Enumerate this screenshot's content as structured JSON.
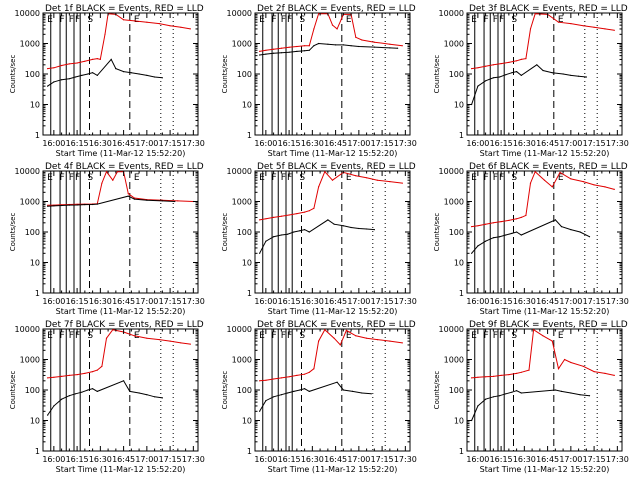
{
  "chart_data": {
    "type": "line",
    "x_tick_labels": [
      "16:00",
      "16:15",
      "16:30",
      "16:45",
      "17:00",
      "17:15",
      "17:30"
    ],
    "x_ticks_min": [
      0,
      15,
      30,
      45,
      60,
      75,
      90
    ],
    "xlim_min": [
      -7,
      93
    ],
    "y_tick_labels": [
      "1",
      "10",
      "100",
      "1000",
      "10000"
    ],
    "y_tick_values": [
      1,
      10,
      100,
      1000,
      10000
    ],
    "ylim": [
      1,
      10000
    ],
    "ylabel": "Counts/sec",
    "xlabel": "Start Time (11-Mar-12 15:52:20)",
    "legend": {
      "black": "Events",
      "red": "LLD"
    },
    "colors": {
      "events": "#000000",
      "lld": "#e00000"
    },
    "panels": [
      {
        "title": "Det 1f BLACK = Events, RED = LLD",
        "lld": [
          [
            -4,
            150
          ],
          [
            0,
            160
          ],
          [
            5,
            190
          ],
          [
            10,
            215
          ],
          [
            15,
            230
          ],
          [
            20,
            260
          ],
          [
            25,
            300
          ],
          [
            28,
            320
          ],
          [
            30,
            300
          ],
          [
            33,
            2000
          ],
          [
            35,
            9500
          ],
          [
            40,
            9000
          ],
          [
            45,
            6000
          ],
          [
            52,
            5500
          ],
          [
            60,
            5000
          ],
          [
            68,
            4500
          ],
          [
            75,
            3800
          ],
          [
            82,
            3400
          ],
          [
            88,
            3000
          ]
        ],
        "events": [
          [
            -4,
            40
          ],
          [
            0,
            55
          ],
          [
            5,
            65
          ],
          [
            10,
            70
          ],
          [
            14,
            80
          ],
          [
            18,
            90
          ],
          [
            22,
            100
          ],
          [
            25,
            110
          ],
          [
            28,
            90
          ],
          [
            37,
            300
          ],
          [
            40,
            150
          ],
          [
            45,
            120
          ],
          [
            50,
            110
          ],
          [
            55,
            100
          ],
          [
            60,
            90
          ],
          [
            65,
            80
          ],
          [
            70,
            75
          ]
        ]
      },
      {
        "title": "Det 2f BLACK = Events, RED = LLD",
        "lld": [
          [
            -4,
            550
          ],
          [
            0,
            600
          ],
          [
            5,
            650
          ],
          [
            10,
            700
          ],
          [
            15,
            750
          ],
          [
            20,
            800
          ],
          [
            25,
            850
          ],
          [
            28,
            850
          ],
          [
            31,
            3000
          ],
          [
            34,
            9500
          ],
          [
            40,
            9500
          ],
          [
            43,
            4000
          ],
          [
            46,
            3000
          ],
          [
            50,
            9000
          ],
          [
            55,
            9000
          ],
          [
            58,
            1600
          ],
          [
            62,
            1300
          ],
          [
            70,
            1100
          ],
          [
            80,
            950
          ],
          [
            88,
            850
          ]
        ],
        "events": [
          [
            -4,
            420
          ],
          [
            0,
            450
          ],
          [
            5,
            480
          ],
          [
            10,
            500
          ],
          [
            15,
            520
          ],
          [
            20,
            550
          ],
          [
            25,
            580
          ],
          [
            28,
            600
          ],
          [
            31,
            850
          ],
          [
            34,
            1000
          ],
          [
            40,
            950
          ],
          [
            45,
            900
          ],
          [
            50,
            900
          ],
          [
            55,
            850
          ],
          [
            60,
            800
          ],
          [
            70,
            760
          ],
          [
            80,
            720
          ],
          [
            85,
            700
          ]
        ]
      },
      {
        "title": "Det 3f BLACK = Events, RED = LLD",
        "lld": [
          [
            -4,
            150
          ],
          [
            0,
            160
          ],
          [
            5,
            180
          ],
          [
            10,
            200
          ],
          [
            15,
            220
          ],
          [
            20,
            240
          ],
          [
            25,
            270
          ],
          [
            28,
            300
          ],
          [
            31,
            320
          ],
          [
            34,
            3000
          ],
          [
            37,
            9500
          ],
          [
            45,
            9000
          ],
          [
            52,
            5000
          ],
          [
            60,
            4500
          ],
          [
            68,
            3800
          ],
          [
            75,
            3400
          ],
          [
            82,
            3000
          ],
          [
            88,
            2700
          ]
        ],
        "events": [
          [
            -4,
            10
          ],
          [
            0,
            40
          ],
          [
            5,
            60
          ],
          [
            10,
            75
          ],
          [
            14,
            80
          ],
          [
            18,
            95
          ],
          [
            22,
            110
          ],
          [
            25,
            120
          ],
          [
            28,
            90
          ],
          [
            38,
            200
          ],
          [
            42,
            130
          ],
          [
            48,
            110
          ],
          [
            55,
            100
          ],
          [
            60,
            90
          ],
          [
            65,
            85
          ],
          [
            70,
            80
          ]
        ]
      },
      {
        "title": "Det 4f BLACK = Events, RED = LLD",
        "lld": [
          [
            -4,
            750
          ],
          [
            0,
            760
          ],
          [
            5,
            780
          ],
          [
            10,
            800
          ],
          [
            15,
            810
          ],
          [
            20,
            820
          ],
          [
            25,
            830
          ],
          [
            28,
            850
          ],
          [
            31,
            4000
          ],
          [
            34,
            9500
          ],
          [
            38,
            5000
          ],
          [
            41,
            9500
          ],
          [
            45,
            9500
          ],
          [
            48,
            1800
          ],
          [
            52,
            1300
          ],
          [
            60,
            1150
          ],
          [
            70,
            1100
          ],
          [
            80,
            1050
          ],
          [
            90,
            1000
          ]
        ],
        "events": [
          [
            -4,
            700
          ],
          [
            0,
            720
          ],
          [
            5,
            740
          ],
          [
            10,
            760
          ],
          [
            15,
            770
          ],
          [
            20,
            790
          ],
          [
            25,
            800
          ],
          [
            28,
            820
          ],
          [
            48,
            1500
          ],
          [
            52,
            1200
          ],
          [
            60,
            1100
          ],
          [
            70,
            1050
          ],
          [
            78,
            1000
          ]
        ]
      },
      {
        "title": "Det 5f BLACK = Events, RED = LLD",
        "lld": [
          [
            -4,
            250
          ],
          [
            0,
            270
          ],
          [
            5,
            300
          ],
          [
            10,
            330
          ],
          [
            15,
            360
          ],
          [
            20,
            400
          ],
          [
            25,
            450
          ],
          [
            28,
            500
          ],
          [
            31,
            600
          ],
          [
            34,
            3000
          ],
          [
            38,
            9500
          ],
          [
            43,
            5000
          ],
          [
            50,
            9000
          ],
          [
            58,
            7000
          ],
          [
            65,
            6000
          ],
          [
            72,
            5000
          ],
          [
            80,
            4500
          ],
          [
            88,
            4000
          ]
        ],
        "events": [
          [
            -4,
            20
          ],
          [
            0,
            50
          ],
          [
            5,
            70
          ],
          [
            10,
            80
          ],
          [
            14,
            85
          ],
          [
            18,
            100
          ],
          [
            22,
            110
          ],
          [
            25,
            120
          ],
          [
            28,
            100
          ],
          [
            40,
            250
          ],
          [
            44,
            180
          ],
          [
            50,
            160
          ],
          [
            55,
            140
          ],
          [
            60,
            130
          ],
          [
            65,
            125
          ],
          [
            70,
            120
          ]
        ]
      },
      {
        "title": "Det 6f BLACK = Events, RED = LLD",
        "lld": [
          [
            -4,
            150
          ],
          [
            0,
            160
          ],
          [
            5,
            180
          ],
          [
            10,
            200
          ],
          [
            15,
            220
          ],
          [
            20,
            240
          ],
          [
            25,
            270
          ],
          [
            28,
            300
          ],
          [
            31,
            350
          ],
          [
            34,
            4000
          ],
          [
            37,
            9500
          ],
          [
            43,
            5000
          ],
          [
            48,
            3000
          ],
          [
            53,
            9000
          ],
          [
            60,
            5500
          ],
          [
            68,
            4500
          ],
          [
            75,
            3500
          ],
          [
            82,
            3000
          ],
          [
            88,
            2500
          ]
        ],
        "events": [
          [
            -4,
            20
          ],
          [
            0,
            35
          ],
          [
            5,
            50
          ],
          [
            10,
            65
          ],
          [
            14,
            70
          ],
          [
            18,
            80
          ],
          [
            22,
            90
          ],
          [
            25,
            100
          ],
          [
            28,
            80
          ],
          [
            50,
            250
          ],
          [
            54,
            150
          ],
          [
            60,
            120
          ],
          [
            66,
            100
          ],
          [
            72,
            70
          ]
        ]
      },
      {
        "title": "Det 7f BLACK = Events, RED = LLD",
        "lld": [
          [
            -4,
            250
          ],
          [
            0,
            260
          ],
          [
            5,
            280
          ],
          [
            10,
            300
          ],
          [
            15,
            320
          ],
          [
            20,
            350
          ],
          [
            25,
            400
          ],
          [
            28,
            450
          ],
          [
            31,
            600
          ],
          [
            34,
            5000
          ],
          [
            38,
            9500
          ],
          [
            45,
            8000
          ],
          [
            52,
            6000
          ],
          [
            60,
            5000
          ],
          [
            68,
            4500
          ],
          [
            75,
            4000
          ],
          [
            82,
            3500
          ],
          [
            88,
            3200
          ]
        ],
        "events": [
          [
            -4,
            15
          ],
          [
            0,
            30
          ],
          [
            5,
            50
          ],
          [
            10,
            65
          ],
          [
            14,
            75
          ],
          [
            18,
            85
          ],
          [
            22,
            100
          ],
          [
            25,
            110
          ],
          [
            28,
            90
          ],
          [
            45,
            200
          ],
          [
            49,
            90
          ],
          [
            55,
            80
          ],
          [
            60,
            70
          ],
          [
            65,
            60
          ],
          [
            70,
            55
          ]
        ]
      },
      {
        "title": "Det 8f BLACK = Events, RED = LLD",
        "lld": [
          [
            -4,
            200
          ],
          [
            0,
            210
          ],
          [
            5,
            230
          ],
          [
            10,
            250
          ],
          [
            15,
            270
          ],
          [
            20,
            300
          ],
          [
            25,
            330
          ],
          [
            28,
            380
          ],
          [
            31,
            500
          ],
          [
            34,
            4000
          ],
          [
            38,
            9500
          ],
          [
            44,
            5000
          ],
          [
            48,
            3000
          ],
          [
            52,
            9000
          ],
          [
            58,
            6000
          ],
          [
            65,
            5000
          ],
          [
            72,
            4500
          ],
          [
            80,
            4000
          ],
          [
            88,
            3500
          ]
        ],
        "events": [
          [
            -4,
            20
          ],
          [
            0,
            45
          ],
          [
            5,
            60
          ],
          [
            10,
            70
          ],
          [
            14,
            80
          ],
          [
            18,
            90
          ],
          [
            22,
            100
          ],
          [
            25,
            110
          ],
          [
            28,
            90
          ],
          [
            46,
            180
          ],
          [
            50,
            100
          ],
          [
            56,
            90
          ],
          [
            62,
            80
          ],
          [
            68,
            75
          ]
        ]
      },
      {
        "title": "Det 9f BLACK = Events, RED = LLD",
        "lld": [
          [
            -4,
            250
          ],
          [
            0,
            260
          ],
          [
            5,
            270
          ],
          [
            10,
            280
          ],
          [
            15,
            300
          ],
          [
            20,
            320
          ],
          [
            25,
            350
          ],
          [
            28,
            380
          ],
          [
            33,
            450
          ],
          [
            36,
            9500
          ],
          [
            42,
            6000
          ],
          [
            48,
            4000
          ],
          [
            52,
            500
          ],
          [
            56,
            1000
          ],
          [
            60,
            800
          ],
          [
            68,
            600
          ],
          [
            75,
            400
          ],
          [
            82,
            350
          ],
          [
            88,
            300
          ]
        ],
        "events": [
          [
            -4,
            10
          ],
          [
            0,
            30
          ],
          [
            5,
            50
          ],
          [
            10,
            60
          ],
          [
            14,
            65
          ],
          [
            18,
            75
          ],
          [
            22,
            85
          ],
          [
            25,
            95
          ],
          [
            28,
            80
          ],
          [
            50,
            100
          ],
          [
            54,
            90
          ],
          [
            60,
            80
          ],
          [
            66,
            70
          ],
          [
            72,
            65
          ]
        ]
      }
    ]
  }
}
